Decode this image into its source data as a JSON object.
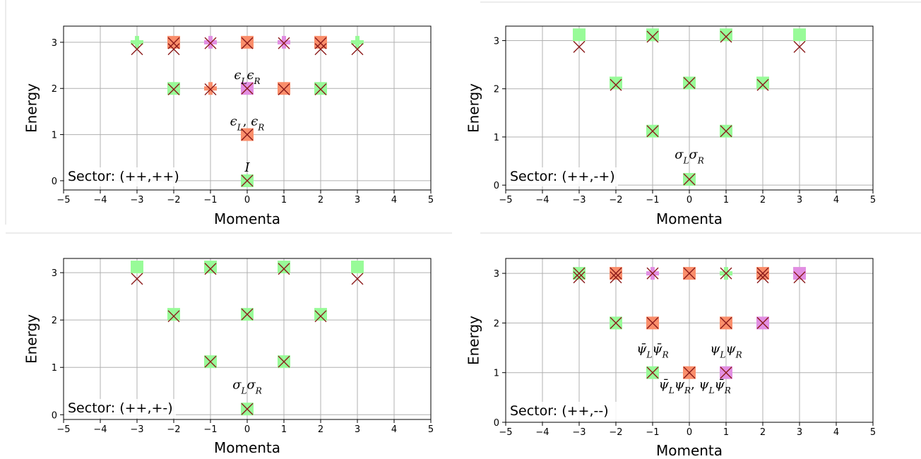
{
  "colors": {
    "green": "#98fb98",
    "orange": "#fa8e6b",
    "violet": "#e28ee2",
    "marker_x": "#8b1a1a",
    "grid": "#b0b0b0",
    "axis": "#000000"
  },
  "chart_data": [
    {
      "type": "scatter",
      "sector_label": "Sector: (++,++)",
      "xlabel": "Momenta",
      "ylabel": "Energy",
      "xlim": [
        -5,
        5
      ],
      "ylim": [
        -0.2,
        3.35
      ],
      "xticks": [
        "−5",
        "−4",
        "−3",
        "−2",
        "−1",
        "0",
        "1",
        "2",
        "3",
        "4",
        "5"
      ],
      "yticks": [
        "0",
        "1",
        "2",
        "3"
      ],
      "grid": true,
      "states": [
        {
          "x": -3,
          "y": 3.0,
          "color": "green",
          "shape": "plus"
        },
        {
          "x": -2,
          "y": 3.0,
          "color": "orange",
          "shape": "square"
        },
        {
          "x": -1,
          "y": 3.0,
          "color": "violet",
          "shape": "plus"
        },
        {
          "x": 0,
          "y": 3.0,
          "color": "orange",
          "shape": "square"
        },
        {
          "x": 1,
          "y": 3.0,
          "color": "violet",
          "shape": "plus"
        },
        {
          "x": 2,
          "y": 3.0,
          "color": "orange",
          "shape": "square"
        },
        {
          "x": 3,
          "y": 3.0,
          "color": "green",
          "shape": "plus"
        },
        {
          "x": -2,
          "y": 2.0,
          "color": "green",
          "shape": "square"
        },
        {
          "x": -1,
          "y": 2.0,
          "color": "orange",
          "shape": "plus"
        },
        {
          "x": 0,
          "y": 2.0,
          "color": "violet",
          "shape": "square"
        },
        {
          "x": 1,
          "y": 2.0,
          "color": "orange",
          "shape": "square"
        },
        {
          "x": 2,
          "y": 2.0,
          "color": "green",
          "shape": "square"
        },
        {
          "x": 0,
          "y": 1.0,
          "color": "orange",
          "shape": "square"
        },
        {
          "x": 0,
          "y": 0.0,
          "color": "green",
          "shape": "square"
        }
      ],
      "numeric_x": [
        {
          "x": -3,
          "y": 2.85
        },
        {
          "x": -2,
          "y": 2.85
        },
        {
          "x": -2,
          "y": 2.98
        },
        {
          "x": -1,
          "y": 2.98
        },
        {
          "x": 0,
          "y": 2.98
        },
        {
          "x": 1,
          "y": 2.98
        },
        {
          "x": 2,
          "y": 2.85
        },
        {
          "x": 2,
          "y": 2.98
        },
        {
          "x": 3,
          "y": 2.85
        },
        {
          "x": -2,
          "y": 1.98
        },
        {
          "x": -1,
          "y": 1.98
        },
        {
          "x": 0,
          "y": 2.0
        },
        {
          "x": 1,
          "y": 1.98
        },
        {
          "x": 2,
          "y": 1.98
        },
        {
          "x": 0,
          "y": 1.0
        },
        {
          "x": 0,
          "y": 0.0
        }
      ],
      "annotations": [
        {
          "x": 0,
          "y": 2.2,
          "parts": [
            {
              "t": "ϵ",
              "i": true
            },
            {
              "t": "L",
              "i": true,
              "sub": true
            },
            {
              "t": "ϵ",
              "i": true
            },
            {
              "t": "R",
              "i": true,
              "sub": true
            }
          ]
        },
        {
          "x": 0,
          "y": 1.2,
          "parts": [
            {
              "t": "ϵ",
              "i": true
            },
            {
              "t": "L",
              "i": true,
              "sub": true
            },
            {
              "t": ", "
            },
            {
              "t": "ϵ",
              "i": true
            },
            {
              "t": "R",
              "i": true,
              "sub": true
            }
          ]
        },
        {
          "x": 0,
          "y": 0.2,
          "parts": [
            {
              "t": "I",
              "i": true
            }
          ]
        }
      ]
    },
    {
      "type": "scatter",
      "sector_label": "Sector: (++,-+)",
      "xlabel": "Momenta",
      "ylabel": "Energy",
      "xlim": [
        -5,
        5
      ],
      "ylim": [
        -0.1,
        3.3
      ],
      "xticks": [
        "−5",
        "−4",
        "−3",
        "−2",
        "−1",
        "0",
        "1",
        "2",
        "3",
        "4",
        "5"
      ],
      "yticks": [
        "0",
        "1",
        "2",
        "3"
      ],
      "grid": true,
      "states": [
        {
          "x": -3,
          "y": 3.12,
          "color": "green",
          "shape": "square"
        },
        {
          "x": -1,
          "y": 3.12,
          "color": "green",
          "shape": "square"
        },
        {
          "x": 1,
          "y": 3.12,
          "color": "green",
          "shape": "square"
        },
        {
          "x": 3,
          "y": 3.12,
          "color": "green",
          "shape": "square"
        },
        {
          "x": -2,
          "y": 2.12,
          "color": "green",
          "shape": "square"
        },
        {
          "x": 0,
          "y": 2.12,
          "color": "green",
          "shape": "square"
        },
        {
          "x": 2,
          "y": 2.12,
          "color": "green",
          "shape": "square"
        },
        {
          "x": -1,
          "y": 1.12,
          "color": "green",
          "shape": "square"
        },
        {
          "x": 1,
          "y": 1.12,
          "color": "green",
          "shape": "square"
        },
        {
          "x": 0,
          "y": 0.12,
          "color": "green",
          "shape": "square"
        }
      ],
      "numeric_x": [
        {
          "x": -3,
          "y": 2.87
        },
        {
          "x": -1,
          "y": 3.08
        },
        {
          "x": 1,
          "y": 3.08
        },
        {
          "x": 3,
          "y": 2.87
        },
        {
          "x": -2,
          "y": 2.08
        },
        {
          "x": 0,
          "y": 2.12
        },
        {
          "x": 2,
          "y": 2.08
        },
        {
          "x": -1,
          "y": 1.12
        },
        {
          "x": 1,
          "y": 1.12
        },
        {
          "x": 0,
          "y": 0.12
        }
      ],
      "annotations": [
        {
          "x": 0,
          "y": 0.55,
          "parts": [
            {
              "t": "σ",
              "i": true
            },
            {
              "t": "L",
              "i": true,
              "sub": true
            },
            {
              "t": "σ",
              "i": true
            },
            {
              "t": "R",
              "i": true,
              "sub": true
            }
          ]
        }
      ]
    },
    {
      "type": "scatter",
      "sector_label": "Sector: (++,+-)",
      "xlabel": "Momenta",
      "ylabel": "Energy",
      "xlim": [
        -5,
        5
      ],
      "ylim": [
        -0.1,
        3.3
      ],
      "xticks": [
        "−5",
        "−4",
        "−3",
        "−2",
        "−1",
        "0",
        "1",
        "2",
        "3",
        "4",
        "5"
      ],
      "yticks": [
        "0",
        "1",
        "2",
        "3"
      ],
      "grid": true,
      "states": [
        {
          "x": -3,
          "y": 3.12,
          "color": "green",
          "shape": "square"
        },
        {
          "x": -1,
          "y": 3.12,
          "color": "green",
          "shape": "square"
        },
        {
          "x": 1,
          "y": 3.12,
          "color": "green",
          "shape": "square"
        },
        {
          "x": 3,
          "y": 3.12,
          "color": "green",
          "shape": "square"
        },
        {
          "x": -2,
          "y": 2.12,
          "color": "green",
          "shape": "square"
        },
        {
          "x": 0,
          "y": 2.12,
          "color": "green",
          "shape": "square"
        },
        {
          "x": 2,
          "y": 2.12,
          "color": "green",
          "shape": "square"
        },
        {
          "x": -1,
          "y": 1.12,
          "color": "green",
          "shape": "square"
        },
        {
          "x": 1,
          "y": 1.12,
          "color": "green",
          "shape": "square"
        },
        {
          "x": 0,
          "y": 0.12,
          "color": "green",
          "shape": "square"
        }
      ],
      "numeric_x": [
        {
          "x": -3,
          "y": 2.87
        },
        {
          "x": -1,
          "y": 3.08
        },
        {
          "x": 1,
          "y": 3.08
        },
        {
          "x": 3,
          "y": 2.87
        },
        {
          "x": -2,
          "y": 2.08
        },
        {
          "x": 0,
          "y": 2.12
        },
        {
          "x": 2,
          "y": 2.08
        },
        {
          "x": -1,
          "y": 1.12
        },
        {
          "x": 1,
          "y": 1.12
        },
        {
          "x": 0,
          "y": 0.12
        }
      ],
      "annotations": [
        {
          "x": 0,
          "y": 0.55,
          "parts": [
            {
              "t": "σ",
              "i": true
            },
            {
              "t": "L",
              "i": true,
              "sub": true
            },
            {
              "t": "σ",
              "i": true
            },
            {
              "t": "R",
              "i": true,
              "sub": true
            }
          ]
        }
      ]
    },
    {
      "type": "scatter",
      "sector_label": "Sector: (++,--)",
      "xlabel": "Momenta",
      "ylabel": "Energy",
      "xlim": [
        -5,
        5
      ],
      "ylim": [
        0,
        3.3
      ],
      "xticks": [
        "−5",
        "−4",
        "−3",
        "−2",
        "−1",
        "0",
        "1",
        "2",
        "3",
        "4",
        "5"
      ],
      "yticks": [
        "0",
        "1",
        "2",
        "3"
      ],
      "grid": true,
      "states": [
        {
          "x": -3,
          "y": 3.0,
          "color": "green",
          "shape": "square"
        },
        {
          "x": -2,
          "y": 3.0,
          "color": "orange",
          "shape": "square"
        },
        {
          "x": -1,
          "y": 3.0,
          "color": "violet",
          "shape": "plus"
        },
        {
          "x": 0,
          "y": 3.0,
          "color": "orange",
          "shape": "square"
        },
        {
          "x": 1,
          "y": 3.0,
          "color": "green",
          "shape": "plus"
        },
        {
          "x": 2,
          "y": 3.0,
          "color": "orange",
          "shape": "square"
        },
        {
          "x": 3,
          "y": 3.0,
          "color": "violet",
          "shape": "square"
        },
        {
          "x": -2,
          "y": 2.0,
          "color": "green",
          "shape": "square"
        },
        {
          "x": -1,
          "y": 2.0,
          "color": "orange",
          "shape": "square"
        },
        {
          "x": 1,
          "y": 2.0,
          "color": "orange",
          "shape": "square"
        },
        {
          "x": 2,
          "y": 2.0,
          "color": "violet",
          "shape": "square"
        },
        {
          "x": -1,
          "y": 1.0,
          "color": "green",
          "shape": "square"
        },
        {
          "x": 0,
          "y": 1.0,
          "color": "orange",
          "shape": "square"
        },
        {
          "x": 1,
          "y": 1.0,
          "color": "violet",
          "shape": "square"
        }
      ],
      "numeric_x": [
        {
          "x": -3,
          "y": 2.92
        },
        {
          "x": -3,
          "y": 3.0
        },
        {
          "x": -2,
          "y": 2.92
        },
        {
          "x": -2,
          "y": 3.0
        },
        {
          "x": -1,
          "y": 3.0
        },
        {
          "x": 0,
          "y": 3.0
        },
        {
          "x": 1,
          "y": 3.0
        },
        {
          "x": 2,
          "y": 2.92
        },
        {
          "x": 2,
          "y": 3.0
        },
        {
          "x": 3,
          "y": 2.92
        },
        {
          "x": -2,
          "y": 2.0
        },
        {
          "x": -1,
          "y": 2.0
        },
        {
          "x": 1,
          "y": 2.0
        },
        {
          "x": 2,
          "y": 2.0
        },
        {
          "x": -1,
          "y": 1.0
        },
        {
          "x": 0,
          "y": 1.0
        },
        {
          "x": 1,
          "y": 1.0
        }
      ],
      "annotations": [
        {
          "x": -1,
          "y": 1.4,
          "parts": [
            {
              "t": "ψ̄",
              "i": true
            },
            {
              "t": "L",
              "i": true,
              "sub": true
            },
            {
              "t": "ψ̄",
              "i": true
            },
            {
              "t": "R",
              "i": true,
              "sub": true
            }
          ]
        },
        {
          "x": 1,
          "y": 1.4,
          "parts": [
            {
              "t": "ψ",
              "i": true
            },
            {
              "t": "L",
              "i": true,
              "sub": true
            },
            {
              "t": "ψ",
              "i": true
            },
            {
              "t": "R",
              "i": true,
              "sub": true
            }
          ]
        },
        {
          "x": 0.15,
          "y": 0.68,
          "parts": [
            {
              "t": "ψ̄",
              "i": true
            },
            {
              "t": "L",
              "i": true,
              "sub": true
            },
            {
              "t": "ψ",
              "i": true
            },
            {
              "t": "R",
              "i": true,
              "sub": true
            },
            {
              "t": ", "
            },
            {
              "t": "ψ",
              "i": true
            },
            {
              "t": "L",
              "i": true,
              "sub": true
            },
            {
              "t": "ψ̄",
              "i": true
            },
            {
              "t": "R",
              "i": true,
              "sub": true
            }
          ]
        }
      ]
    }
  ]
}
